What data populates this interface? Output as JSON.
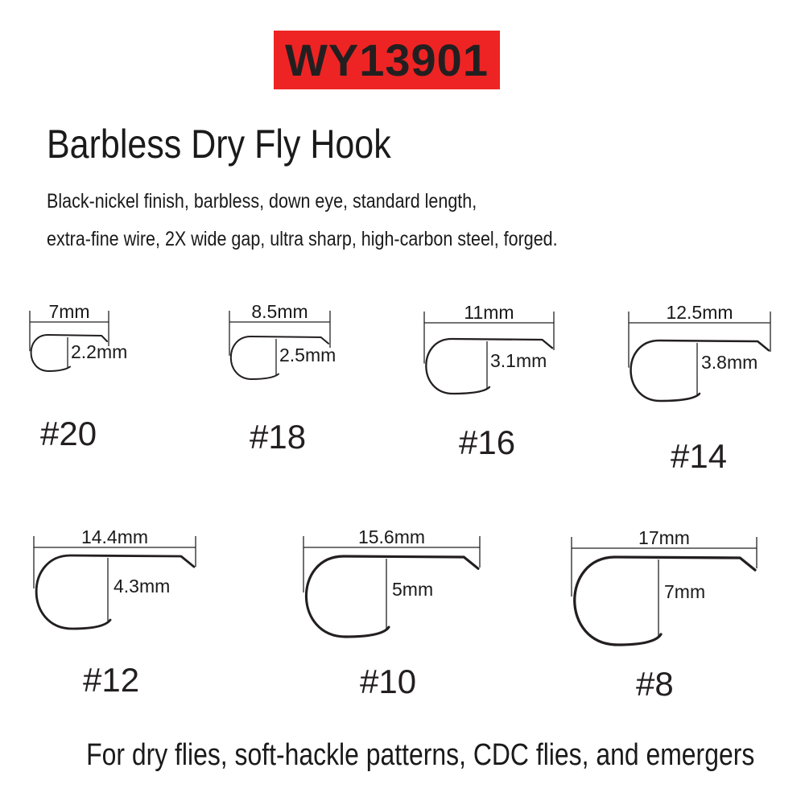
{
  "product_code": "WY13901",
  "title": "Barbless Dry Fly Hook",
  "description": [
    "Black-nickel finish, barbless, down eye, standard length,",
    "extra-fine wire, 2X wide gap, ultra sharp, high-carbon steel, forged."
  ],
  "hooks": [
    {
      "size": "#20",
      "length": "7mm",
      "gap": "2.2mm"
    },
    {
      "size": "#18",
      "length": "8.5mm",
      "gap": "2.5mm"
    },
    {
      "size": "#16",
      "length": "11mm",
      "gap": "3.1mm"
    },
    {
      "size": "#14",
      "length": "12.5mm",
      "gap": "3.8mm"
    },
    {
      "size": "#12",
      "length": "14.4mm",
      "gap": "4.3mm"
    },
    {
      "size": "#10",
      "length": "15.6mm",
      "gap": "5mm"
    },
    {
      "size": "#8",
      "length": "17mm",
      "gap": "7mm"
    }
  ],
  "footer": "For dry flies, soft-hackle patterns, CDC flies, and emergers",
  "colors": {
    "badge": "#ee2424",
    "ink": "#231f20"
  }
}
